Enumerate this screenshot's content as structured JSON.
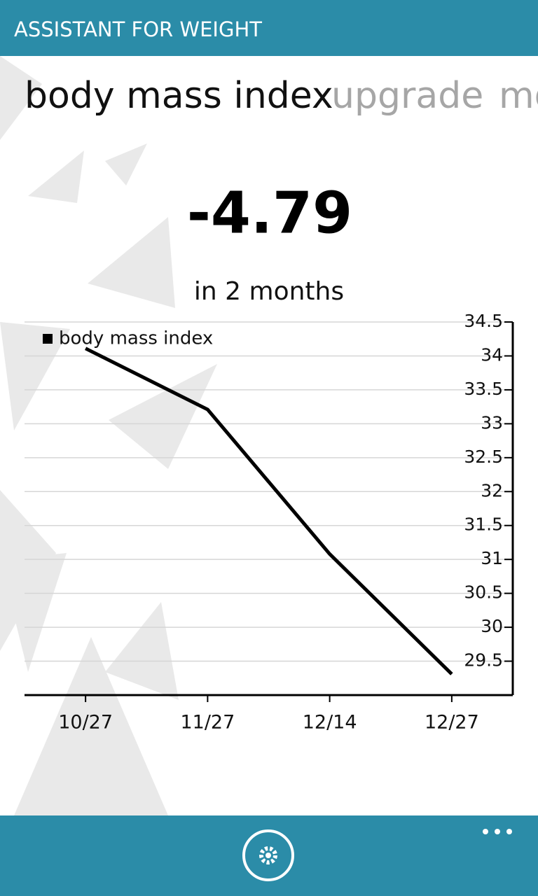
{
  "app_title": "ASSISTANT FOR WEIGHT",
  "pivot": [
    "body mass index",
    "upgrade",
    "mo"
  ],
  "change": -4.79,
  "period": "in 2 months",
  "chart_data": {
    "type": "line",
    "categories": [
      "10/27",
      "11/27",
      "12/14",
      "12/27"
    ],
    "series": [
      {
        "name": "body mass index",
        "color": "#000000",
        "values": [
          34.11,
          33.21,
          31.08,
          29.31
        ]
      }
    ],
    "ylim": [
      29,
      34.5
    ],
    "yticks": [
      29.5,
      30,
      30.5,
      31,
      31.5,
      32,
      32.5,
      33,
      33.5,
      34,
      34.5
    ],
    "grid": true,
    "legend": "top-left"
  }
}
